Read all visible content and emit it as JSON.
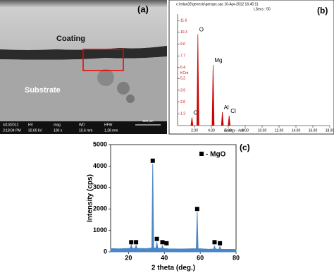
{
  "sem": {
    "label": "(a)",
    "coating": "Coating",
    "substrate": "Substrate",
    "info_headers": [
      "4/10/2012",
      "HV",
      "mag",
      "WD",
      "HFW"
    ],
    "info_values": [
      "3:18:04 PM",
      "30.00 kV",
      "100 x",
      "10.6 mm",
      "1.28 mm"
    ],
    "scale": "500 μm"
  },
  "chart_data": [
    {
      "type": "spectrum",
      "panel_label": "(b)",
      "header": "c:\\edax32\\genesis\\genspc.spc  10-Apr-2012 16:45:11",
      "subheader": "LSecs : 50",
      "x_label": "Energy - keV",
      "y_label": "KCnt",
      "color": "#cc0000",
      "categories": [
        "C",
        "O",
        "Mg",
        "Al",
        "Cl"
      ],
      "x": [
        1.7,
        2.4,
        4.2,
        5.3,
        6.1
      ],
      "values": [
        0.9,
        10.1,
        6.7,
        1.5,
        1.1
      ],
      "xlim": [
        0,
        18
      ],
      "ylim": [
        0,
        12
      ],
      "xticks": [
        {
          "value": 2,
          "label": "2.00"
        },
        {
          "value": 4,
          "label": "4.00"
        },
        {
          "value": 6,
          "label": "6.00"
        },
        {
          "value": 8,
          "label": "8.00"
        },
        {
          "value": 10,
          "label": "10.00"
        },
        {
          "value": 12,
          "label": "12.00"
        },
        {
          "value": 14,
          "label": "14.00"
        },
        {
          "value": 16,
          "label": "16.00"
        },
        {
          "value": 18,
          "label": "18.00"
        }
      ],
      "yticks": [
        1.3,
        2.6,
        3.9,
        5.2,
        6.4,
        7.7,
        {
          "value": 9,
          "label": "9.0"
        },
        10.3,
        11.6
      ]
    },
    {
      "type": "area",
      "panel_label": "(c)",
      "x_label": "2 theta (deg.)",
      "y_label": "Intensity (cps)",
      "legend": "- MgO",
      "color": "#4a86c5",
      "x": [
        10,
        15,
        20,
        21,
        21.5,
        22,
        23.7,
        24.2,
        24.7,
        30,
        33,
        33.5,
        34,
        35.3,
        35.8,
        36.3,
        38.5,
        38.9,
        39.3,
        41.2,
        42,
        50,
        57.8,
        58.3,
        58.8,
        65,
        67.5,
        68,
        68.5,
        70.5,
        71,
        71.5,
        80
      ],
      "values": [
        150,
        140,
        160,
        170,
        320,
        170,
        160,
        300,
        160,
        150,
        180,
        4100,
        180,
        170,
        450,
        170,
        160,
        300,
        160,
        150,
        140,
        130,
        150,
        1850,
        150,
        120,
        130,
        260,
        130,
        120,
        250,
        120,
        110
      ],
      "markers": {
        "x": [
          21.5,
          24.2,
          33.5,
          35.8,
          38.9,
          41.2,
          58.3,
          68,
          71
        ],
        "values": [
          450,
          450,
          4250,
          600,
          450,
          400,
          2000,
          450,
          400
        ]
      },
      "xlim": [
        10,
        80
      ],
      "ylim": [
        0,
        5000
      ],
      "xticks": [
        20,
        40,
        60,
        80
      ],
      "yticks": [
        0,
        1000,
        2000,
        3000,
        4000,
        5000
      ]
    }
  ]
}
